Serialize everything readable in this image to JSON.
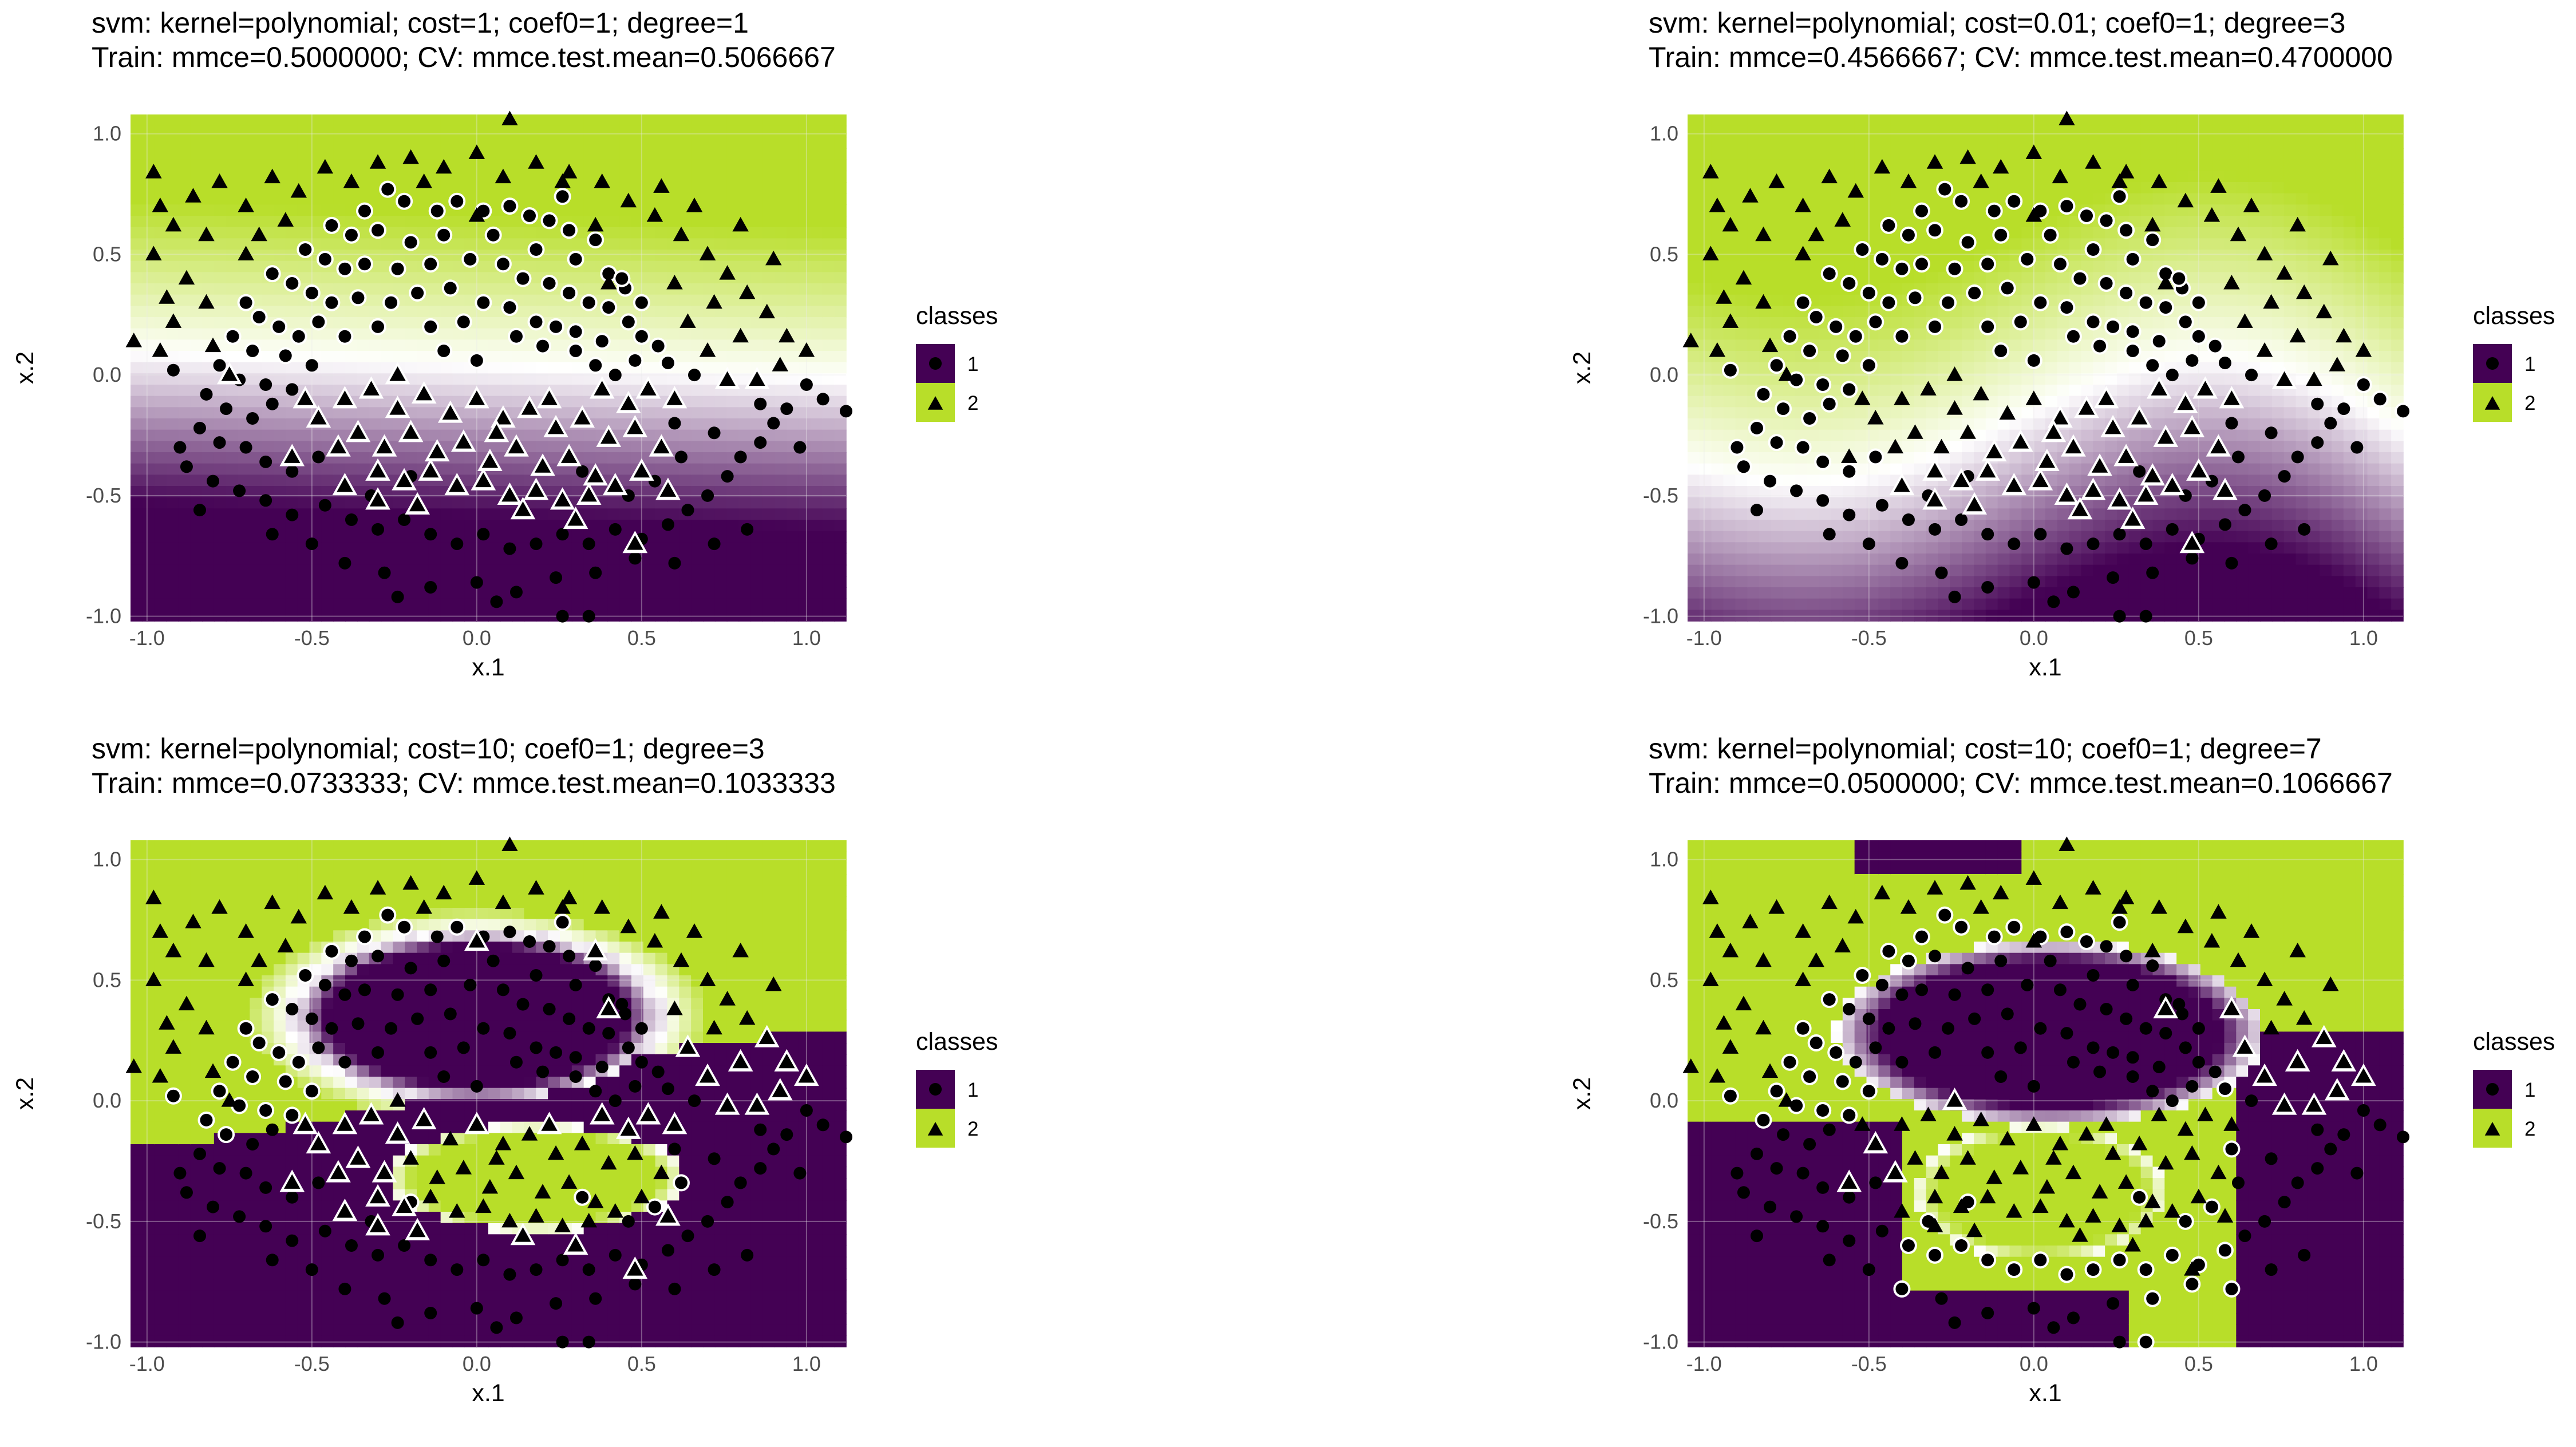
{
  "figure": {
    "panels": [
      {
        "title_line1": "svm: kernel=polynomial; cost=1; coef0=1; degree=1",
        "title_line2": "Train: mmce=0.5000000; CV: mmce.test.mean=0.5066667"
      },
      {
        "title_line1": "svm: kernel=polynomial; cost=0.01; coef0=1; degree=3",
        "title_line2": "Train: mmce=0.4566667; CV: mmce.test.mean=0.4700000"
      },
      {
        "title_line1": "svm: kernel=polynomial; cost=10; coef0=1; degree=3",
        "title_line2": "Train: mmce=0.0733333; CV: mmce.test.mean=0.1033333"
      },
      {
        "title_line1": "svm: kernel=polynomial; cost=10; coef0=1; degree=7",
        "title_line2": "Train: mmce=0.0500000; CV: mmce.test.mean=0.1066667"
      }
    ]
  },
  "chart_data": [
    {
      "type": "scatter",
      "title": "svm: kernel=polynomial; cost=1; coef0=1; degree=1",
      "subtitle": "Train: mmce=0.5000000; CV: mmce.test.mean=0.5066667",
      "xlabel": "x.1",
      "ylabel": "x.2",
      "xlim": [
        -1.05,
        1.12
      ],
      "ylim": [
        -1.02,
        1.08
      ],
      "x_ticks": [
        "-1.0",
        "-0.5",
        "0.0",
        "0.5",
        "1.0"
      ],
      "y_ticks": [
        "-1.0",
        "-0.5",
        "0.0",
        "0.5",
        "1.0"
      ],
      "legend": {
        "title": "classes",
        "entries": [
          "1",
          "2"
        ],
        "position": "right"
      },
      "background": "decision surface (class 1 purple #440154-like, class 2 yellow-green #b8de29)",
      "data": "points as listed in shared points_class1 / points_class2"
    },
    {
      "type": "scatter",
      "title": "svm: kernel=polynomial; cost=0.01; coef0=1; degree=3",
      "subtitle": "Train: mmce=0.4566667; CV: mmce.test.mean=0.4700000",
      "xlabel": "x.1",
      "ylabel": "x.2",
      "xlim": [
        -1.05,
        1.12
      ],
      "ylim": [
        -1.02,
        1.08
      ],
      "x_ticks": [
        "-1.0",
        "-0.5",
        "0.0",
        "0.5",
        "1.0"
      ],
      "y_ticks": [
        "-1.0",
        "-0.5",
        "0.0",
        "0.5",
        "1.0"
      ],
      "legend": {
        "title": "classes",
        "entries": [
          "1",
          "2"
        ],
        "position": "right"
      },
      "data": "points as listed in shared points_class1 / points_class2"
    },
    {
      "type": "scatter",
      "title": "svm: kernel=polynomial; cost=10; coef0=1; degree=3",
      "subtitle": "Train: mmce=0.0733333; CV: mmce.test.mean=0.1033333",
      "xlabel": "x.1",
      "ylabel": "x.2",
      "xlim": [
        -1.05,
        1.12
      ],
      "ylim": [
        -1.02,
        1.08
      ],
      "x_ticks": [
        "-1.0",
        "-0.5",
        "0.0",
        "0.5",
        "1.0"
      ],
      "y_ticks": [
        "-1.0",
        "-0.5",
        "0.0",
        "0.5",
        "1.0"
      ],
      "legend": {
        "title": "classes",
        "entries": [
          "1",
          "2"
        ],
        "position": "right"
      },
      "data": "points as listed in shared points_class1 / points_class2"
    },
    {
      "type": "scatter",
      "title": "svm: kernel=polynomial; cost=10; coef0=1; degree=7",
      "subtitle": "Train: mmce=0.0500000; CV: mmce.test.mean=0.1066667",
      "xlabel": "x.1",
      "ylabel": "x.2",
      "xlim": [
        -1.05,
        1.12
      ],
      "ylim": [
        -1.02,
        1.08
      ],
      "x_ticks": [
        "-1.0",
        "-0.5",
        "0.0",
        "0.5",
        "1.0"
      ],
      "y_ticks": [
        "-1.0",
        "-0.5",
        "0.0",
        "0.5",
        "1.0"
      ],
      "legend": {
        "title": "classes",
        "entries": [
          "1",
          "2"
        ],
        "position": "right"
      },
      "data": "points as listed in shared points_class1 / points_class2"
    }
  ],
  "shared": {
    "xlabel": "x.1",
    "ylabel": "x.2",
    "x_ticks": [
      "-1.0",
      "-0.5",
      "0.0",
      "0.5",
      "1.0"
    ],
    "y_ticks": [
      "-1.0",
      "-0.5",
      "0.0",
      "0.5",
      "1.0"
    ],
    "legend_title": "classes",
    "legend_entries": [
      "1",
      "2"
    ],
    "colors": {
      "class1": "#440154",
      "class2": "#b8de29",
      "mid": "#ffffff",
      "point": "#000000",
      "grid": "#ebebeb"
    },
    "points_class1": [
      [
        -0.27,
        0.77
      ],
      [
        -0.22,
        0.72
      ],
      [
        -0.12,
        0.68
      ],
      [
        -0.06,
        0.72
      ],
      [
        0.02,
        0.68
      ],
      [
        0.1,
        0.7
      ],
      [
        0.16,
        0.66
      ],
      [
        0.22,
        0.64
      ],
      [
        0.28,
        0.6
      ],
      [
        0.36,
        0.56
      ],
      [
        -0.44,
        0.62
      ],
      [
        -0.38,
        0.58
      ],
      [
        -0.3,
        0.6
      ],
      [
        -0.2,
        0.55
      ],
      [
        -0.1,
        0.58
      ],
      [
        0.05,
        0.58
      ],
      [
        0.18,
        0.52
      ],
      [
        0.3,
        0.48
      ],
      [
        0.4,
        0.42
      ],
      [
        0.45,
        0.36
      ],
      [
        -0.52,
        0.52
      ],
      [
        -0.46,
        0.48
      ],
      [
        -0.4,
        0.44
      ],
      [
        -0.34,
        0.46
      ],
      [
        -0.24,
        0.44
      ],
      [
        -0.14,
        0.46
      ],
      [
        -0.02,
        0.48
      ],
      [
        0.08,
        0.46
      ],
      [
        0.14,
        0.4
      ],
      [
        0.22,
        0.38
      ],
      [
        0.28,
        0.34
      ],
      [
        0.34,
        0.3
      ],
      [
        0.4,
        0.28
      ],
      [
        0.46,
        0.22
      ],
      [
        0.5,
        0.16
      ],
      [
        0.55,
        0.12
      ],
      [
        0.58,
        0.05
      ],
      [
        0.48,
        0.06
      ],
      [
        0.38,
        0.14
      ],
      [
        0.3,
        0.18
      ],
      [
        -0.62,
        0.42
      ],
      [
        -0.56,
        0.38
      ],
      [
        -0.5,
        0.34
      ],
      [
        -0.44,
        0.3
      ],
      [
        -0.36,
        0.32
      ],
      [
        -0.26,
        0.3
      ],
      [
        -0.18,
        0.34
      ],
      [
        -0.08,
        0.36
      ],
      [
        0.02,
        0.3
      ],
      [
        0.1,
        0.28
      ],
      [
        0.18,
        0.22
      ],
      [
        0.24,
        0.2
      ],
      [
        0.3,
        0.1
      ],
      [
        0.36,
        0.04
      ],
      [
        0.42,
        0.0
      ],
      [
        0.2,
        0.12
      ],
      [
        0.12,
        0.16
      ],
      [
        -0.04,
        0.22
      ],
      [
        -0.14,
        0.2
      ],
      [
        -0.3,
        0.2
      ],
      [
        -0.7,
        0.3
      ],
      [
        -0.66,
        0.24
      ],
      [
        -0.6,
        0.2
      ],
      [
        -0.54,
        0.16
      ],
      [
        -0.48,
        0.22
      ],
      [
        -0.4,
        0.16
      ],
      [
        -0.74,
        0.16
      ],
      [
        -0.68,
        0.1
      ],
      [
        -0.58,
        0.08
      ],
      [
        -0.5,
        0.04
      ],
      [
        -0.78,
        0.04
      ],
      [
        -0.72,
        -0.02
      ],
      [
        -0.64,
        -0.04
      ],
      [
        -0.56,
        -0.06
      ],
      [
        -0.82,
        -0.08
      ],
      [
        -0.76,
        -0.14
      ],
      [
        -0.68,
        -0.18
      ],
      [
        -0.62,
        -0.12
      ],
      [
        -0.84,
        -0.22
      ],
      [
        -0.78,
        -0.28
      ],
      [
        -0.7,
        -0.3
      ],
      [
        -0.64,
        -0.36
      ],
      [
        -0.56,
        -0.4
      ],
      [
        -0.48,
        -0.34
      ],
      [
        -0.88,
        -0.38
      ],
      [
        -0.8,
        -0.44
      ],
      [
        -0.72,
        -0.48
      ],
      [
        -0.64,
        -0.52
      ],
      [
        -0.56,
        -0.58
      ],
      [
        -0.46,
        -0.54
      ],
      [
        -0.38,
        -0.6
      ],
      [
        -0.3,
        -0.64
      ],
      [
        -0.22,
        -0.6
      ],
      [
        -0.14,
        -0.66
      ],
      [
        -0.06,
        -0.7
      ],
      [
        0.02,
        -0.66
      ],
      [
        0.1,
        -0.72
      ],
      [
        0.18,
        -0.7
      ],
      [
        0.26,
        -0.66
      ],
      [
        0.34,
        -0.7
      ],
      [
        0.42,
        -0.64
      ],
      [
        0.5,
        -0.68
      ],
      [
        0.58,
        -0.62
      ],
      [
        0.64,
        -0.56
      ],
      [
        0.7,
        -0.5
      ],
      [
        0.76,
        -0.42
      ],
      [
        0.8,
        -0.34
      ],
      [
        0.86,
        -0.28
      ],
      [
        0.9,
        -0.2
      ],
      [
        0.94,
        -0.14
      ],
      [
        1.0,
        -0.04
      ],
      [
        1.05,
        -0.1
      ],
      [
        1.12,
        -0.15
      ],
      [
        0.98,
        -0.3
      ],
      [
        0.86,
        -0.12
      ],
      [
        0.72,
        -0.24
      ],
      [
        0.62,
        -0.34
      ],
      [
        0.54,
        -0.44
      ],
      [
        0.46,
        -0.5
      ],
      [
        -0.4,
        -0.78
      ],
      [
        -0.28,
        -0.82
      ],
      [
        -0.14,
        -0.88
      ],
      [
        0.0,
        -0.86
      ],
      [
        0.12,
        -0.9
      ],
      [
        0.24,
        -0.84
      ],
      [
        0.36,
        -0.82
      ],
      [
        0.48,
        -0.76
      ],
      [
        0.6,
        -0.78
      ],
      [
        0.72,
        -0.7
      ],
      [
        0.82,
        -0.64
      ],
      [
        -0.24,
        -0.92
      ],
      [
        0.06,
        -0.94
      ],
      [
        0.26,
        -1.0
      ],
      [
        0.34,
        -1.0
      ],
      [
        -0.5,
        -0.7
      ],
      [
        -0.62,
        -0.66
      ],
      [
        -0.84,
        -0.56
      ],
      [
        -0.32,
        -0.5
      ],
      [
        -0.2,
        -0.42
      ],
      [
        0.32,
        -0.4
      ],
      [
        -0.1,
        0.1
      ],
      [
        0.0,
        0.06
      ],
      [
        0.44,
        0.4
      ],
      [
        0.5,
        0.3
      ],
      [
        -0.34,
        0.68
      ],
      [
        0.26,
        0.74
      ],
      [
        0.6,
        -0.2
      ],
      [
        0.66,
        0.0
      ],
      [
        -0.9,
        -0.3
      ],
      [
        -0.92,
        0.02
      ]
    ],
    "points_class2": [
      [
        -0.98,
        0.84
      ],
      [
        -0.86,
        0.74
      ],
      [
        -0.78,
        0.8
      ],
      [
        -0.7,
        0.7
      ],
      [
        -0.62,
        0.82
      ],
      [
        -0.54,
        0.76
      ],
      [
        -0.46,
        0.86
      ],
      [
        -0.38,
        0.8
      ],
      [
        -0.3,
        0.88
      ],
      [
        -0.2,
        0.9
      ],
      [
        -0.1,
        0.86
      ],
      [
        0.0,
        0.92
      ],
      [
        0.08,
        0.82
      ],
      [
        0.18,
        0.88
      ],
      [
        0.28,
        0.84
      ],
      [
        0.38,
        0.8
      ],
      [
        0.46,
        0.72
      ],
      [
        0.54,
        0.66
      ],
      [
        0.62,
        0.58
      ],
      [
        0.7,
        0.5
      ],
      [
        0.76,
        0.42
      ],
      [
        0.82,
        0.34
      ],
      [
        0.88,
        0.26
      ],
      [
        0.94,
        0.16
      ],
      [
        1.0,
        0.1
      ],
      [
        0.9,
        0.48
      ],
      [
        0.8,
        0.62
      ],
      [
        0.66,
        0.7
      ],
      [
        0.56,
        0.78
      ],
      [
        -0.92,
        0.62
      ],
      [
        -0.98,
        0.5
      ],
      [
        -0.88,
        0.4
      ],
      [
        -0.82,
        0.3
      ],
      [
        -0.92,
        0.22
      ],
      [
        -0.96,
        0.1
      ],
      [
        -1.04,
        0.14
      ],
      [
        -0.82,
        0.58
      ],
      [
        -0.7,
        0.5
      ],
      [
        -0.96,
        0.7
      ],
      [
        0.1,
        1.06
      ],
      [
        -0.16,
        0.8
      ],
      [
        0.36,
        0.62
      ],
      [
        0.26,
        0.8
      ],
      [
        0.72,
        0.3
      ],
      [
        0.64,
        0.22
      ],
      [
        0.7,
        0.1
      ],
      [
        0.8,
        0.16
      ],
      [
        0.76,
        -0.02
      ],
      [
        -0.4,
        -0.1
      ],
      [
        -0.32,
        -0.06
      ],
      [
        -0.24,
        -0.14
      ],
      [
        -0.16,
        -0.08
      ],
      [
        -0.08,
        -0.16
      ],
      [
        0.0,
        -0.1
      ],
      [
        0.08,
        -0.18
      ],
      [
        0.16,
        -0.14
      ],
      [
        0.24,
        -0.22
      ],
      [
        0.32,
        -0.18
      ],
      [
        0.4,
        -0.26
      ],
      [
        0.48,
        -0.22
      ],
      [
        -0.36,
        -0.24
      ],
      [
        -0.28,
        -0.3
      ],
      [
        -0.2,
        -0.24
      ],
      [
        -0.12,
        -0.32
      ],
      [
        -0.04,
        -0.28
      ],
      [
        0.04,
        -0.36
      ],
      [
        0.12,
        -0.3
      ],
      [
        0.2,
        -0.38
      ],
      [
        0.28,
        -0.34
      ],
      [
        0.36,
        -0.42
      ],
      [
        -0.3,
        -0.4
      ],
      [
        -0.22,
        -0.44
      ],
      [
        -0.14,
        -0.4
      ],
      [
        -0.06,
        -0.46
      ],
      [
        0.02,
        -0.44
      ],
      [
        0.1,
        -0.5
      ],
      [
        0.18,
        -0.48
      ],
      [
        0.26,
        -0.52
      ],
      [
        0.34,
        -0.5
      ],
      [
        0.42,
        -0.46
      ],
      [
        -0.42,
        -0.3
      ],
      [
        -0.48,
        -0.18
      ],
      [
        -0.24,
        0.0
      ],
      [
        -0.3,
        -0.52
      ],
      [
        0.5,
        -0.4
      ],
      [
        0.56,
        -0.3
      ],
      [
        0.6,
        -0.1
      ],
      [
        0.52,
        -0.06
      ],
      [
        0.46,
        -0.12
      ],
      [
        -0.18,
        -0.54
      ],
      [
        0.14,
        -0.56
      ],
      [
        0.3,
        -0.6
      ],
      [
        0.48,
        -0.7
      ],
      [
        -0.56,
        -0.34
      ],
      [
        -0.4,
        -0.46
      ],
      [
        0.06,
        -0.24
      ],
      [
        0.22,
        -0.1
      ],
      [
        0.38,
        -0.06
      ],
      [
        -0.52,
        -0.1
      ],
      [
        0.58,
        -0.48
      ],
      [
        -0.58,
        0.64
      ],
      [
        -0.66,
        0.58
      ],
      [
        -0.94,
        0.32
      ],
      [
        0.0,
        0.66
      ],
      [
        0.4,
        0.38
      ],
      [
        0.6,
        0.38
      ],
      [
        0.92,
        0.04
      ],
      [
        0.85,
        -0.02
      ],
      [
        -0.8,
        0.12
      ],
      [
        -0.75,
        0.0
      ]
    ]
  }
}
